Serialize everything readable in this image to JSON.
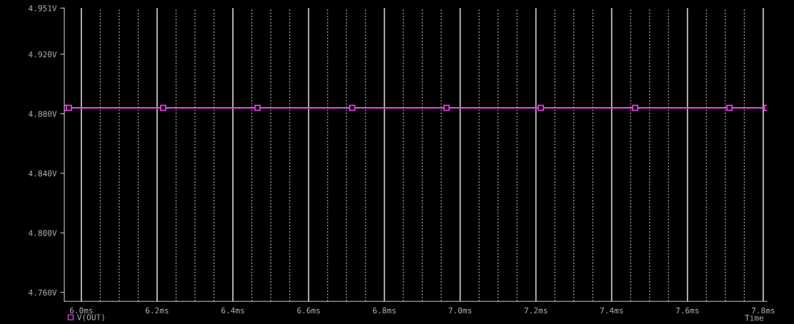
{
  "chart_data": {
    "type": "line",
    "xlabel": "Time",
    "x": [
      5.955,
      5.967,
      6.216,
      6.465,
      6.715,
      6.964,
      7.213,
      7.462,
      7.711,
      7.81
    ],
    "series": [
      {
        "name": "V(OUT)",
        "color": "#e040e0",
        "values": [
          4.884,
          4.884,
          4.884,
          4.884,
          4.884,
          4.884,
          4.884,
          4.884,
          4.884,
          4.884
        ]
      }
    ],
    "xlim": [
      5.955,
      7.81
    ],
    "ylim": [
      4.754,
      4.951
    ],
    "xticks": [
      {
        "value": 6.0,
        "label": "6.0ms"
      },
      {
        "value": 6.05,
        "label": null
      },
      {
        "value": 6.1,
        "label": null
      },
      {
        "value": 6.15,
        "label": null
      },
      {
        "value": 6.2,
        "label": "6.2ms"
      },
      {
        "value": 6.25,
        "label": null
      },
      {
        "value": 6.3,
        "label": null
      },
      {
        "value": 6.35,
        "label": null
      },
      {
        "value": 6.4,
        "label": "6.4ms"
      },
      {
        "value": 6.45,
        "label": null
      },
      {
        "value": 6.5,
        "label": null
      },
      {
        "value": 6.55,
        "label": null
      },
      {
        "value": 6.6,
        "label": "6.6ms"
      },
      {
        "value": 6.65,
        "label": null
      },
      {
        "value": 6.7,
        "label": null
      },
      {
        "value": 6.75,
        "label": null
      },
      {
        "value": 6.8,
        "label": "6.8ms"
      },
      {
        "value": 6.85,
        "label": null
      },
      {
        "value": 6.9,
        "label": null
      },
      {
        "value": 6.95,
        "label": null
      },
      {
        "value": 7.0,
        "label": "7.0ms"
      },
      {
        "value": 7.05,
        "label": null
      },
      {
        "value": 7.1,
        "label": null
      },
      {
        "value": 7.15,
        "label": null
      },
      {
        "value": 7.2,
        "label": "7.2ms"
      },
      {
        "value": 7.25,
        "label": null
      },
      {
        "value": 7.3,
        "label": null
      },
      {
        "value": 7.35,
        "label": null
      },
      {
        "value": 7.4,
        "label": "7.4ms"
      },
      {
        "value": 7.45,
        "label": null
      },
      {
        "value": 7.5,
        "label": null
      },
      {
        "value": 7.55,
        "label": null
      },
      {
        "value": 7.6,
        "label": "7.6ms"
      },
      {
        "value": 7.65,
        "label": null
      },
      {
        "value": 7.7,
        "label": null
      },
      {
        "value": 7.75,
        "label": null
      },
      {
        "value": 7.8,
        "label": "7.8ms"
      }
    ],
    "yticks": [
      {
        "value": 4.76,
        "label": "4.760V"
      },
      {
        "value": 4.8,
        "label": "4.800V"
      },
      {
        "value": 4.84,
        "label": "4.840V"
      },
      {
        "value": 4.88,
        "label": "4.880V"
      },
      {
        "value": 4.92,
        "label": "4.920V"
      },
      {
        "value": 4.951,
        "label": "4.951V"
      }
    ],
    "grid": "x",
    "legend": "bottom left",
    "marker": "square",
    "line_style": "solid"
  }
}
